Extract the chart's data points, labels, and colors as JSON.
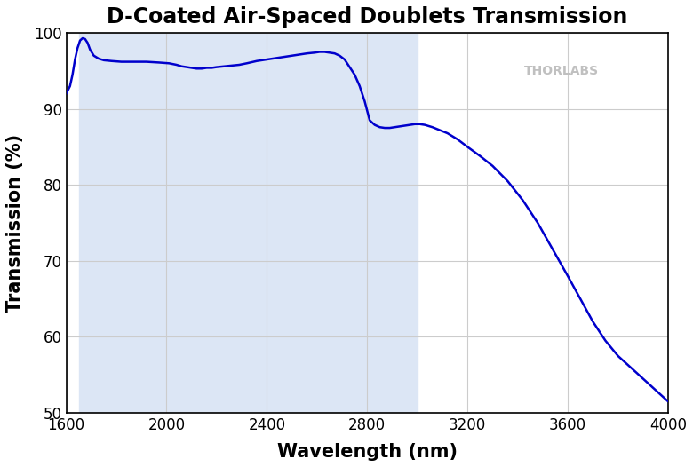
{
  "title": "D-Coated Air-Spaced Doublets Transmission",
  "xlabel": "Wavelength (nm)",
  "ylabel": "Transmission (%)",
  "xlim": [
    1600,
    4000
  ],
  "ylim": [
    50,
    100
  ],
  "xticks": [
    1600,
    2000,
    2400,
    2800,
    3200,
    3600,
    4000
  ],
  "yticks": [
    50,
    60,
    70,
    80,
    90,
    100
  ],
  "line_color": "#0000cc",
  "line_width": 1.8,
  "shaded_region_start": 1650,
  "shaded_region_end": 3000,
  "shaded_color": "#dce6f5",
  "grid_color": "#cccccc",
  "bg_color": "#ffffff",
  "fig_bg_color": "#ffffff",
  "watermark_text": "THORLABS",
  "watermark_color": "#c0c0c0",
  "title_fontsize": 17,
  "axis_label_fontsize": 15,
  "tick_fontsize": 12,
  "curve_x": [
    1600,
    1615,
    1625,
    1635,
    1645,
    1655,
    1665,
    1675,
    1685,
    1695,
    1710,
    1730,
    1750,
    1780,
    1820,
    1870,
    1920,
    1970,
    2010,
    2040,
    2060,
    2080,
    2100,
    2120,
    2140,
    2160,
    2180,
    2200,
    2230,
    2260,
    2290,
    2320,
    2360,
    2400,
    2440,
    2480,
    2520,
    2560,
    2590,
    2610,
    2630,
    2650,
    2670,
    2690,
    2710,
    2730,
    2750,
    2770,
    2790,
    2810,
    2830,
    2850,
    2870,
    2890,
    2910,
    2930,
    2950,
    2970,
    2990,
    3010,
    3030,
    3060,
    3090,
    3120,
    3160,
    3200,
    3250,
    3300,
    3360,
    3420,
    3480,
    3540,
    3600,
    3650,
    3700,
    3750,
    3800,
    3850,
    3900,
    3950,
    4000
  ],
  "curve_y": [
    92.0,
    93.0,
    94.5,
    96.5,
    98.0,
    99.0,
    99.3,
    99.2,
    98.7,
    97.8,
    97.0,
    96.6,
    96.4,
    96.3,
    96.2,
    96.2,
    96.2,
    96.1,
    96.0,
    95.8,
    95.6,
    95.5,
    95.4,
    95.3,
    95.3,
    95.4,
    95.4,
    95.5,
    95.6,
    95.7,
    95.8,
    96.0,
    96.3,
    96.5,
    96.7,
    96.9,
    97.1,
    97.3,
    97.4,
    97.5,
    97.5,
    97.4,
    97.3,
    97.0,
    96.5,
    95.5,
    94.5,
    93.0,
    91.0,
    88.5,
    87.9,
    87.6,
    87.5,
    87.5,
    87.6,
    87.7,
    87.8,
    87.9,
    88.0,
    88.0,
    87.9,
    87.6,
    87.2,
    86.8,
    86.0,
    85.0,
    83.8,
    82.5,
    80.5,
    78.0,
    75.0,
    71.5,
    68.0,
    65.0,
    62.0,
    59.5,
    57.5,
    56.0,
    54.5,
    53.0,
    51.5
  ]
}
